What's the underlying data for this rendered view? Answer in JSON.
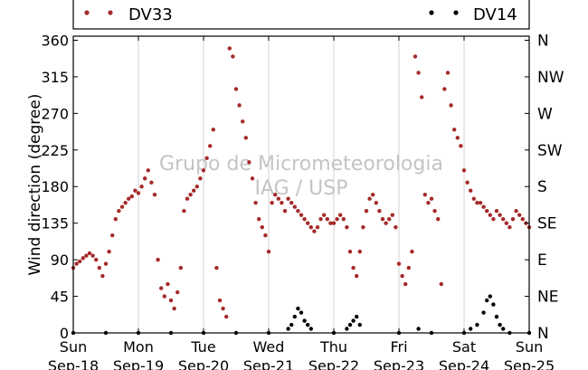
{
  "chart_data": {
    "type": "scatter",
    "ylabel": "Wind direction (degree)",
    "ylim": [
      0,
      365
    ],
    "yticks": [
      0,
      45,
      90,
      135,
      180,
      225,
      270,
      315,
      360
    ],
    "yticks_right": [
      "N",
      "NE",
      "E",
      "SE",
      "S",
      "SW",
      "W",
      "NW",
      "N"
    ],
    "x_range_days": [
      0,
      7
    ],
    "xticks": [
      {
        "day": 0,
        "weekday": "Sun",
        "date": "Sep-18"
      },
      {
        "day": 1,
        "weekday": "Mon",
        "date": "Sep-19"
      },
      {
        "day": 2,
        "weekday": "Tue",
        "date": "Sep-20"
      },
      {
        "day": 3,
        "weekday": "Wed",
        "date": "Sep-21"
      },
      {
        "day": 4,
        "weekday": "Thu",
        "date": "Sep-22"
      },
      {
        "day": 5,
        "weekday": "Fri",
        "date": "Sep-23"
      },
      {
        "day": 6,
        "weekday": "Sat",
        "date": "Sep-24"
      },
      {
        "day": 7,
        "weekday": "Sun",
        "date": "Sep-25"
      }
    ],
    "grid": "vertical",
    "legend_position": "top",
    "watermark": [
      "Grupo de Micrometeorologia",
      "IAG / USP"
    ],
    "series": [
      {
        "name": "DV33",
        "color": "#a52a2a",
        "points": [
          [
            0.0,
            80
          ],
          [
            0.05,
            85
          ],
          [
            0.1,
            88
          ],
          [
            0.15,
            92
          ],
          [
            0.2,
            95
          ],
          [
            0.25,
            98
          ],
          [
            0.3,
            95
          ],
          [
            0.35,
            90
          ],
          [
            0.4,
            80
          ],
          [
            0.45,
            70
          ],
          [
            0.5,
            85
          ],
          [
            0.55,
            100
          ],
          [
            0.6,
            120
          ],
          [
            0.65,
            140
          ],
          [
            0.7,
            150
          ],
          [
            0.75,
            155
          ],
          [
            0.8,
            160
          ],
          [
            0.85,
            165
          ],
          [
            0.9,
            168
          ],
          [
            0.95,
            175
          ],
          [
            1.0,
            172
          ],
          [
            1.05,
            180
          ],
          [
            1.1,
            190
          ],
          [
            1.15,
            200
          ],
          [
            1.2,
            185
          ],
          [
            1.25,
            170
          ],
          [
            1.3,
            90
          ],
          [
            1.35,
            55
          ],
          [
            1.4,
            45
          ],
          [
            1.45,
            60
          ],
          [
            1.5,
            40
          ],
          [
            1.55,
            30
          ],
          [
            1.6,
            50
          ],
          [
            1.65,
            80
          ],
          [
            1.7,
            150
          ],
          [
            1.75,
            165
          ],
          [
            1.8,
            170
          ],
          [
            1.85,
            175
          ],
          [
            1.9,
            180
          ],
          [
            1.95,
            190
          ],
          [
            2.0,
            200
          ],
          [
            2.05,
            215
          ],
          [
            2.1,
            230
          ],
          [
            2.15,
            250
          ],
          [
            2.2,
            80
          ],
          [
            2.25,
            40
          ],
          [
            2.3,
            30
          ],
          [
            2.35,
            20
          ],
          [
            2.4,
            350
          ],
          [
            2.45,
            340
          ],
          [
            2.5,
            300
          ],
          [
            2.55,
            280
          ],
          [
            2.6,
            260
          ],
          [
            2.65,
            240
          ],
          [
            2.7,
            210
          ],
          [
            2.75,
            190
          ],
          [
            2.8,
            160
          ],
          [
            2.85,
            140
          ],
          [
            2.9,
            130
          ],
          [
            2.95,
            120
          ],
          [
            3.0,
            100
          ],
          [
            3.05,
            160
          ],
          [
            3.1,
            170
          ],
          [
            3.15,
            165
          ],
          [
            3.2,
            160
          ],
          [
            3.25,
            150
          ],
          [
            3.3,
            165
          ],
          [
            3.35,
            160
          ],
          [
            3.4,
            155
          ],
          [
            3.45,
            150
          ],
          [
            3.5,
            145
          ],
          [
            3.55,
            140
          ],
          [
            3.6,
            135
          ],
          [
            3.65,
            130
          ],
          [
            3.7,
            125
          ],
          [
            3.75,
            130
          ],
          [
            3.8,
            140
          ],
          [
            3.85,
            145
          ],
          [
            3.9,
            140
          ],
          [
            3.95,
            135
          ],
          [
            4.0,
            135
          ],
          [
            4.05,
            140
          ],
          [
            4.1,
            145
          ],
          [
            4.15,
            140
          ],
          [
            4.2,
            130
          ],
          [
            4.25,
            100
          ],
          [
            4.3,
            80
          ],
          [
            4.35,
            70
          ],
          [
            4.4,
            100
          ],
          [
            4.45,
            130
          ],
          [
            4.5,
            150
          ],
          [
            4.55,
            165
          ],
          [
            4.6,
            170
          ],
          [
            4.65,
            160
          ],
          [
            4.7,
            150
          ],
          [
            4.75,
            140
          ],
          [
            4.8,
            135
          ],
          [
            4.85,
            140
          ],
          [
            4.9,
            145
          ],
          [
            4.95,
            130
          ],
          [
            5.0,
            85
          ],
          [
            5.05,
            70
          ],
          [
            5.1,
            60
          ],
          [
            5.15,
            80
          ],
          [
            5.2,
            100
          ],
          [
            5.25,
            340
          ],
          [
            5.3,
            320
          ],
          [
            5.35,
            290
          ],
          [
            5.4,
            170
          ],
          [
            5.45,
            160
          ],
          [
            5.5,
            165
          ],
          [
            5.55,
            150
          ],
          [
            5.6,
            140
          ],
          [
            5.65,
            60
          ],
          [
            5.7,
            300
          ],
          [
            5.75,
            320
          ],
          [
            5.8,
            280
          ],
          [
            5.85,
            250
          ],
          [
            5.9,
            240
          ],
          [
            5.95,
            230
          ],
          [
            6.0,
            200
          ],
          [
            6.05,
            185
          ],
          [
            6.1,
            175
          ],
          [
            6.15,
            165
          ],
          [
            6.2,
            160
          ],
          [
            6.25,
            160
          ],
          [
            6.3,
            155
          ],
          [
            6.35,
            150
          ],
          [
            6.4,
            145
          ],
          [
            6.45,
            140
          ],
          [
            6.5,
            150
          ],
          [
            6.55,
            145
          ],
          [
            6.6,
            140
          ],
          [
            6.65,
            135
          ],
          [
            6.7,
            130
          ],
          [
            6.75,
            140
          ],
          [
            6.8,
            150
          ],
          [
            6.85,
            145
          ],
          [
            6.9,
            140
          ],
          [
            6.95,
            135
          ],
          [
            7.0,
            130
          ]
        ]
      },
      {
        "name": "DV14",
        "color": "#000000",
        "points": [
          [
            0.0,
            0
          ],
          [
            0.5,
            0
          ],
          [
            1.0,
            0
          ],
          [
            1.5,
            0
          ],
          [
            2.0,
            0
          ],
          [
            2.5,
            0
          ],
          [
            3.0,
            0
          ],
          [
            3.3,
            5
          ],
          [
            3.35,
            10
          ],
          [
            3.4,
            20
          ],
          [
            3.45,
            30
          ],
          [
            3.5,
            25
          ],
          [
            3.55,
            15
          ],
          [
            3.6,
            10
          ],
          [
            3.65,
            5
          ],
          [
            4.0,
            0
          ],
          [
            4.2,
            5
          ],
          [
            4.25,
            10
          ],
          [
            4.3,
            15
          ],
          [
            4.35,
            20
          ],
          [
            4.4,
            10
          ],
          [
            5.0,
            0
          ],
          [
            5.3,
            5
          ],
          [
            5.5,
            0
          ],
          [
            6.0,
            0
          ],
          [
            6.1,
            5
          ],
          [
            6.2,
            10
          ],
          [
            6.3,
            25
          ],
          [
            6.35,
            40
          ],
          [
            6.4,
            45
          ],
          [
            6.45,
            35
          ],
          [
            6.5,
            20
          ],
          [
            6.55,
            10
          ],
          [
            6.6,
            5
          ],
          [
            6.7,
            0
          ],
          [
            7.0,
            0
          ]
        ]
      }
    ]
  }
}
